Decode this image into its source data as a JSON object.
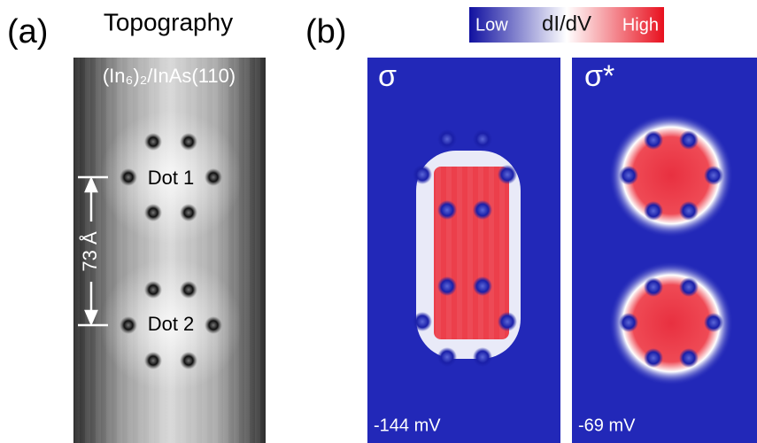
{
  "panel_a": {
    "label": "(a)",
    "title": "Topography",
    "sample": "(In₆)₂/InAs(110)",
    "dots": [
      "Dot 1",
      "Dot 2"
    ],
    "distance": "73 Å"
  },
  "panel_b": {
    "label": "(b)",
    "colorbar": {
      "low": "Low",
      "quantity": "dI/dV",
      "high": "High"
    },
    "maps": [
      {
        "state": "σ",
        "bias": "-144 mV"
      },
      {
        "state": "σ*",
        "bias": "-69 mV"
      }
    ]
  }
}
